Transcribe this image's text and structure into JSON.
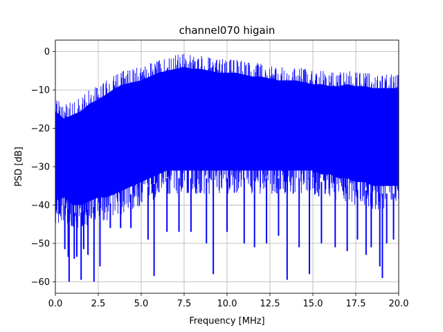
{
  "chart_data": {
    "type": "line",
    "title": "channel070 higain",
    "xlabel": "Frequency [MHz]",
    "ylabel": "PSD [dB]",
    "xlim": [
      0,
      20
    ],
    "ylim": [
      -63,
      3
    ],
    "xticks": [
      0,
      2.5,
      5,
      7.5,
      10,
      12.5,
      15,
      17.5,
      20
    ],
    "xtick_labels": [
      "0.0",
      "2.5",
      "5.0",
      "7.5",
      "10.0",
      "12.5",
      "15.0",
      "17.5",
      "20.0"
    ],
    "yticks": [
      0,
      -10,
      -20,
      -30,
      -40,
      -50,
      -60
    ],
    "ytick_labels": [
      "0",
      "−10",
      "−20",
      "−30",
      "−40",
      "−50",
      "−60"
    ],
    "grid": true,
    "series": [
      {
        "color": "#0000ff",
        "upper_envelope": {
          "x": [
            0,
            0.5,
            1,
            1.5,
            2,
            2.5,
            3,
            3.5,
            4,
            4.5,
            5,
            5.5,
            6,
            6.5,
            7,
            7.5,
            8,
            8.5,
            9,
            9.5,
            10,
            10.5,
            11,
            11.5,
            12,
            12.5,
            13,
            13.5,
            14,
            14.5,
            15,
            15.5,
            16,
            16.5,
            17,
            17.5,
            18,
            18.5,
            19,
            19.5,
            20
          ],
          "y": [
            -12,
            -14,
            -13,
            -12,
            -10,
            -9,
            -7.5,
            -6,
            -5,
            -4.5,
            -4,
            -3,
            -2,
            -1.5,
            -1,
            -0.5,
            -1,
            -1,
            -1.5,
            -2,
            -2,
            -2,
            -2.5,
            -3,
            -3,
            -3.5,
            -4,
            -4,
            -4,
            -4.5,
            -5,
            -5,
            -5.5,
            -5.5,
            -5,
            -5.5,
            -5.5,
            -6,
            -6,
            -6,
            -6
          ]
        },
        "lower_envelope": {
          "x": [
            0,
            0.5,
            1,
            1.5,
            2,
            2.5,
            3,
            3.5,
            4,
            4.5,
            5,
            5.5,
            6,
            6.5,
            7,
            7.5,
            8,
            8.5,
            9,
            9.5,
            10,
            10.5,
            11,
            11.5,
            12,
            12.5,
            13,
            13.5,
            14,
            14.5,
            15,
            15.5,
            16,
            16.5,
            17,
            17.5,
            18,
            18.5,
            19,
            19.5,
            20
          ],
          "y": [
            -45,
            -44,
            -46,
            -46,
            -45,
            -44,
            -44,
            -43,
            -42,
            -41,
            -40,
            -39,
            -38,
            -37,
            -37,
            -37,
            -37,
            -37,
            -37,
            -37,
            -37,
            -37,
            -37,
            -37,
            -37,
            -37,
            -37,
            -37,
            -37,
            -37,
            -37,
            -38,
            -38,
            -39,
            -39,
            -40,
            -40,
            -41,
            -41,
            -41,
            -41
          ]
        },
        "notches": [
          {
            "x": 0.55,
            "y": -51.5
          },
          {
            "x": 0.75,
            "y": -53.5
          },
          {
            "x": 0.8,
            "y": -60
          },
          {
            "x": 1.1,
            "y": -54
          },
          {
            "x": 1.25,
            "y": -53.5
          },
          {
            "x": 1.5,
            "y": -59.5
          },
          {
            "x": 1.65,
            "y": -51.5
          },
          {
            "x": 1.9,
            "y": -53
          },
          {
            "x": 2.25,
            "y": -60
          },
          {
            "x": 2.6,
            "y": -56
          },
          {
            "x": 3.2,
            "y": -46
          },
          {
            "x": 3.8,
            "y": -46
          },
          {
            "x": 4.4,
            "y": -46
          },
          {
            "x": 5.4,
            "y": -49
          },
          {
            "x": 5.75,
            "y": -58.5
          },
          {
            "x": 6.5,
            "y": -47
          },
          {
            "x": 7.2,
            "y": -47
          },
          {
            "x": 7.9,
            "y": -47
          },
          {
            "x": 8.8,
            "y": -50
          },
          {
            "x": 9.2,
            "y": -58
          },
          {
            "x": 10.0,
            "y": -47
          },
          {
            "x": 11.0,
            "y": -50
          },
          {
            "x": 11.6,
            "y": -51
          },
          {
            "x": 12.3,
            "y": -50
          },
          {
            "x": 13.0,
            "y": -48
          },
          {
            "x": 13.5,
            "y": -59.5
          },
          {
            "x": 14.2,
            "y": -51
          },
          {
            "x": 14.8,
            "y": -58
          },
          {
            "x": 15.5,
            "y": -50
          },
          {
            "x": 16.3,
            "y": -51
          },
          {
            "x": 17.0,
            "y": -52
          },
          {
            "x": 17.6,
            "y": -49
          },
          {
            "x": 18.1,
            "y": -53
          },
          {
            "x": 18.4,
            "y": -51
          },
          {
            "x": 18.9,
            "y": -56
          },
          {
            "x": 19.05,
            "y": -59
          },
          {
            "x": 19.3,
            "y": -50
          },
          {
            "x": 19.7,
            "y": -49
          }
        ]
      }
    ]
  }
}
